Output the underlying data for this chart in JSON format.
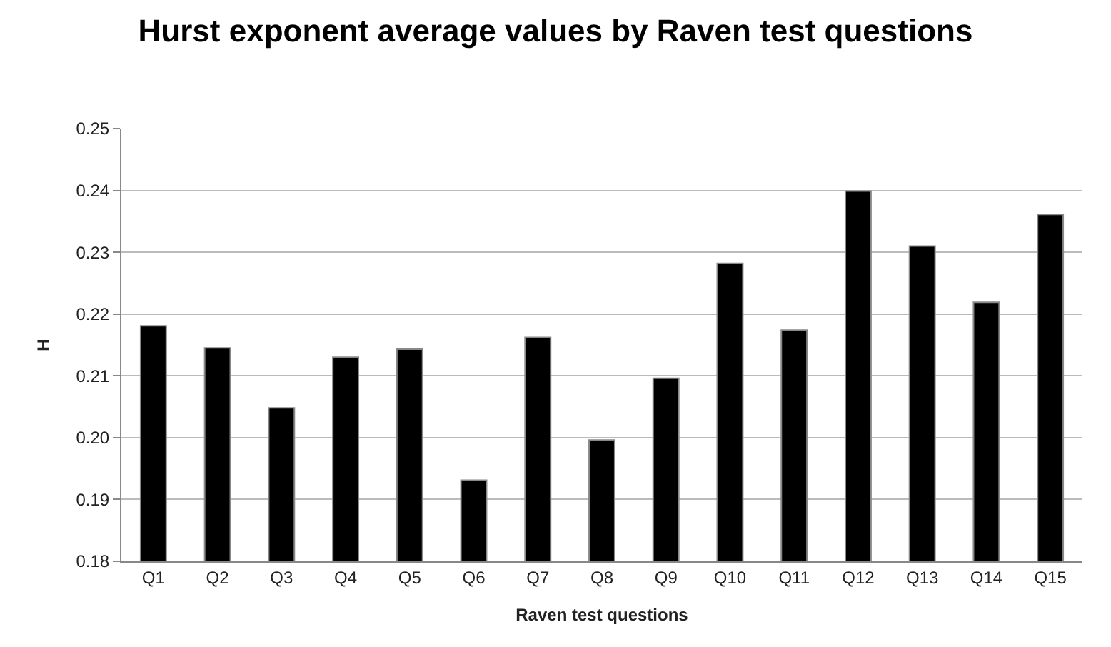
{
  "chart_data": {
    "type": "bar",
    "title": "Hurst exponent average values by Raven test questions",
    "xlabel": "Raven test questions",
    "ylabel": "H",
    "categories": [
      "Q1",
      "Q2",
      "Q3",
      "Q4",
      "Q5",
      "Q6",
      "Q7",
      "Q8",
      "Q9",
      "Q10",
      "Q11",
      "Q12",
      "Q13",
      "Q14",
      "Q15"
    ],
    "values": [
      0.2181,
      0.2145,
      0.2048,
      0.213,
      0.2143,
      0.1931,
      0.2162,
      0.1996,
      0.2096,
      0.2282,
      0.2174,
      0.2399,
      0.231,
      0.2219,
      0.2361
    ],
    "color": "#000000",
    "ylim": [
      0.18,
      0.25
    ],
    "yticks": [
      0.18,
      0.19,
      {
        "value": 0.2,
        "label": "0.20"
      },
      0.21,
      0.22,
      0.23,
      0.24,
      0.25
    ],
    "grid": "y",
    "legend": false
  }
}
